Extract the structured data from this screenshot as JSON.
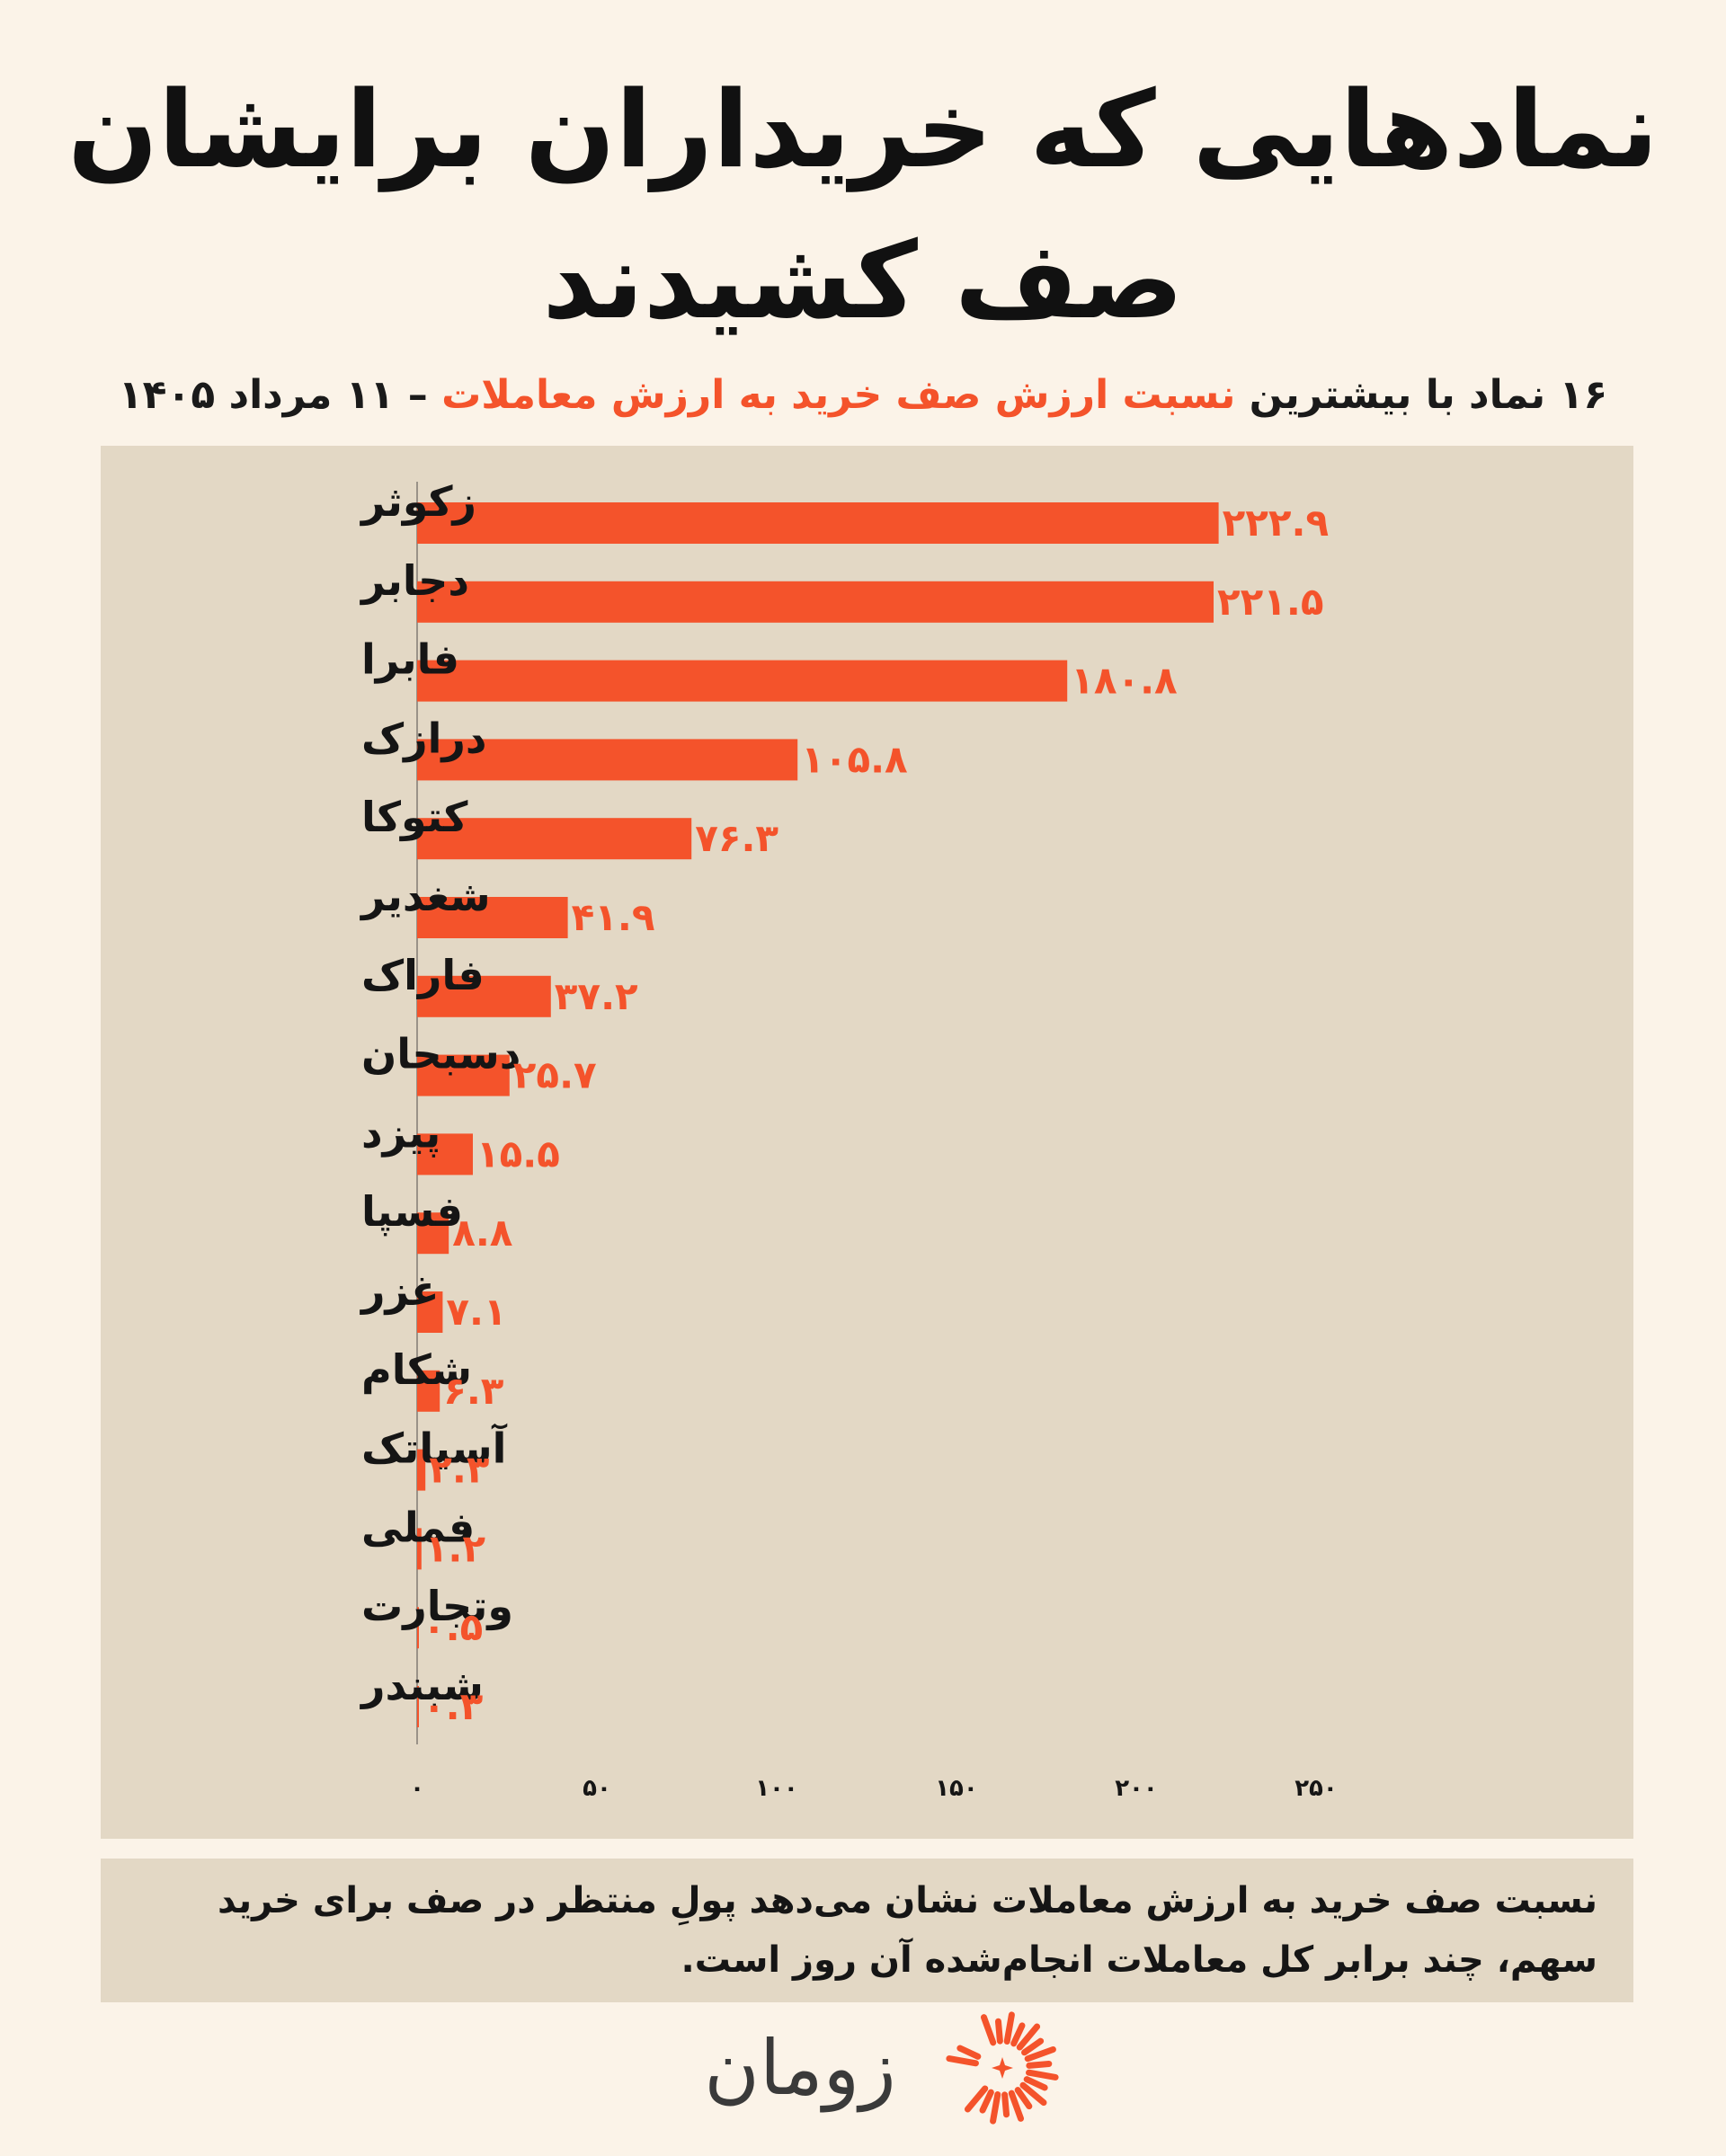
{
  "title": "نمادهایی که خریداران برایشان صف کشیدند",
  "subtitle": {
    "part1": "۱۶ نماد با بیشترین",
    "highlight": "نسبت ارزش صف خرید به ارزش معاملات",
    "part2": "– ۱۱ مرداد ۱۴۰۵"
  },
  "colors": {
    "bar": "#f4532b",
    "panel": "#e3d8c5",
    "background": "#fbf3e8",
    "text": "#151515"
  },
  "chart_data": {
    "type": "bar",
    "orientation": "horizontal",
    "categories": [
      "زکوثر",
      "دجابر",
      "فابرا",
      "درازک",
      "کتوکا",
      "شغدیر",
      "فاراک",
      "دسبحان",
      "پیزد",
      "فسپا",
      "غزر",
      "شکام",
      "آسیاتک",
      "فملی",
      "وتجارت",
      "شبندر"
    ],
    "values": [
      222.9,
      221.5,
      180.8,
      105.8,
      76.3,
      41.9,
      37.2,
      25.7,
      15.5,
      8.8,
      7.1,
      6.3,
      2.3,
      1.2,
      0.5,
      0.3
    ],
    "value_labels": [
      "۲۲۲.۹",
      "۲۲۱.۵",
      "۱۸۰.۸",
      "۱۰۵.۸",
      "۷۶.۳",
      "۴۱.۹",
      "۳۷.۲",
      "۲۵.۷",
      "۱۵.۵",
      "۸.۸",
      "۷.۱",
      "۶.۳",
      "۲.۳",
      "۱.۲",
      "۰.۵",
      "۰.۳"
    ],
    "xlim": [
      0,
      250
    ],
    "ticks": [
      0,
      50,
      100,
      150,
      200,
      250
    ],
    "tick_labels": [
      "۰",
      "۵۰",
      "۱۰۰",
      "۱۵۰",
      "۲۰۰",
      "۲۵۰"
    ],
    "grid": false
  },
  "note": "نسبت صف خرید به ارزش معاملات نشان می‌دهد پولِ منتظر در صف برای خرید سهم، چند برابر کل معاملات انجام‌شده آن روز است.",
  "logo": {
    "text": "زومان",
    "icon": "sunburst-logo-icon"
  }
}
